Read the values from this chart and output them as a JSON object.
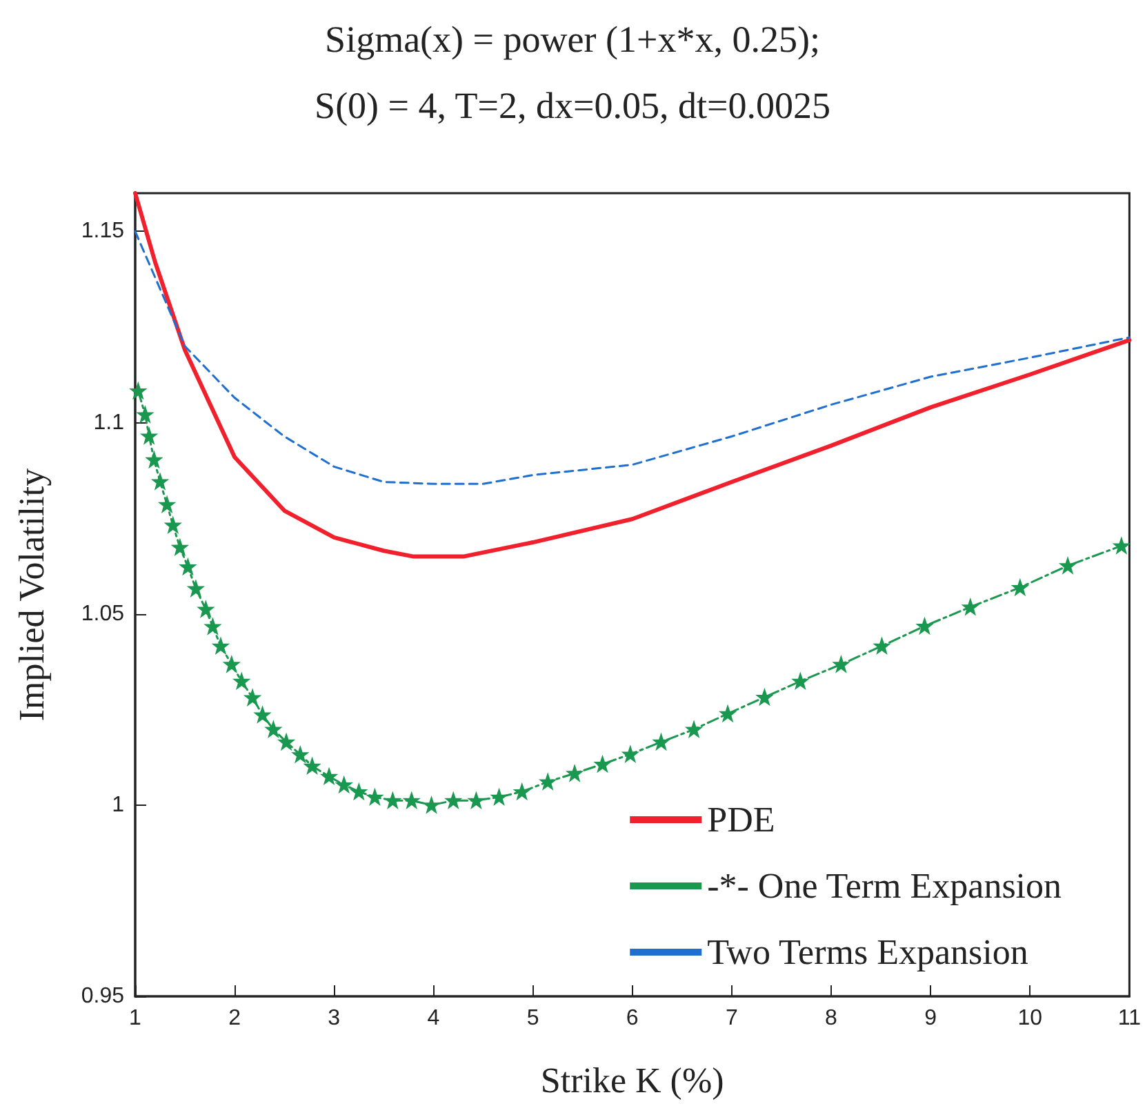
{
  "chart_data": {
    "type": "line",
    "title": "Sigma(x) = power (1+x*x, 0.25);",
    "subtitle": "S(0) = 4, T=2, dx=0.05, dt=0.0025",
    "xlabel": "Strike K (%)",
    "ylabel": "Implied Volatility",
    "xlim": [
      1,
      11
    ],
    "xticks": [
      1,
      2,
      3,
      4,
      5,
      6,
      7,
      8,
      9,
      10,
      11
    ],
    "ylim": [
      0.95,
      1.16
    ],
    "yticks": [
      0.95,
      1,
      1.05,
      1.1,
      1.15
    ],
    "grid": false,
    "legend": "bottom right",
    "series": [
      {
        "name": "PDE",
        "color": "#f0202c",
        "line_style": "solid",
        "marker": "none",
        "x": [
          1,
          1.2,
          1.5,
          2,
          2.5,
          3,
          3.5,
          3.8,
          4.3,
          5,
          6,
          7,
          8,
          9,
          10,
          11
        ],
        "values": [
          1.16,
          1.142,
          1.119,
          1.091,
          1.077,
          1.07,
          1.0665,
          1.065,
          1.065,
          1.0687,
          1.0748,
          1.0845,
          1.094,
          1.104,
          1.1126,
          1.1216
        ]
      },
      {
        "name": "-*- One Term Expansion",
        "color": "#1a9850",
        "line_style": "dashed",
        "marker": "star",
        "x": [
          1.03,
          1.1,
          1.14,
          1.19,
          1.25,
          1.32,
          1.38,
          1.45,
          1.53,
          1.61,
          1.71,
          1.78,
          1.86,
          1.97,
          2.07,
          2.18,
          2.28,
          2.39,
          2.52,
          2.66,
          2.78,
          2.95,
          3.1,
          3.25,
          3.41,
          3.59,
          3.78,
          3.98,
          4.2,
          4.43,
          4.66,
          4.89,
          5.15,
          5.42,
          5.7,
          5.98,
          6.29,
          6.62,
          6.96,
          7.33,
          7.69,
          8.1,
          8.51,
          8.94,
          9.4,
          9.9,
          10.38,
          10.92
        ],
        "values": [
          1.1083,
          1.1021,
          1.0965,
          1.0903,
          1.0846,
          1.0786,
          1.0732,
          1.0674,
          1.0623,
          1.0566,
          1.0512,
          1.0467,
          1.0416,
          1.0368,
          1.0324,
          1.0281,
          1.0236,
          1.0198,
          1.0165,
          1.0132,
          1.0102,
          1.0075,
          1.0053,
          1.0035,
          1.0021,
          1.0012,
          1.0012,
          1.0,
          1.0012,
          1.0012,
          1.0021,
          1.0035,
          1.0061,
          1.0083,
          1.0107,
          1.0133,
          1.0165,
          1.0198,
          1.0239,
          1.0282,
          1.0324,
          1.0368,
          1.0416,
          1.0468,
          1.0518,
          1.0569,
          1.0626,
          1.0678
        ]
      },
      {
        "name": "Two Terms Expansion",
        "color": "#1f6fd0",
        "line_style": "dashed",
        "marker": "none",
        "x": [
          1,
          1.5,
          2,
          2.5,
          3,
          3.5,
          4,
          4.5,
          5,
          6,
          7,
          8,
          9,
          10,
          11
        ],
        "values": [
          1.15,
          1.12,
          1.1065,
          1.0964,
          1.0885,
          1.0845,
          1.084,
          1.084,
          1.0863,
          1.089,
          1.0964,
          1.1047,
          1.112,
          1.117,
          1.1223
        ]
      }
    ]
  }
}
